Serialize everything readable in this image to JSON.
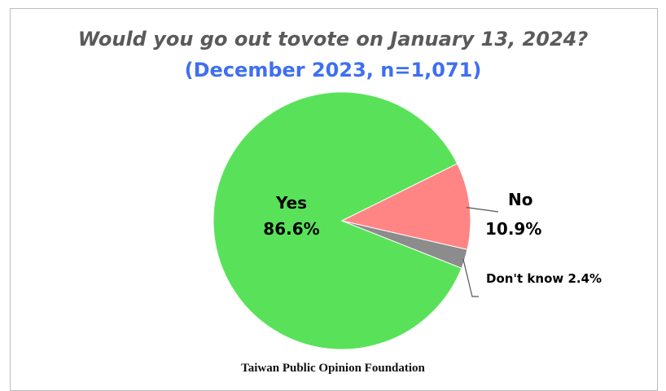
{
  "chart_data": {
    "type": "pie",
    "title": "Would you go out tovote on January 13, 2024?",
    "subtitle": "(December 2023, n=1,071)",
    "slices": [
      {
        "label": "Yes",
        "value": 86.6,
        "display": "86.6%",
        "color": "#59e259"
      },
      {
        "label": "No",
        "value": 10.9,
        "display": "10.9%",
        "color": "#ff8585"
      },
      {
        "label": "Don't know",
        "value": 2.4,
        "display": "2.4%",
        "color": "#8c8c8c"
      }
    ]
  },
  "source": "Taiwan Public Opinion Foundation"
}
